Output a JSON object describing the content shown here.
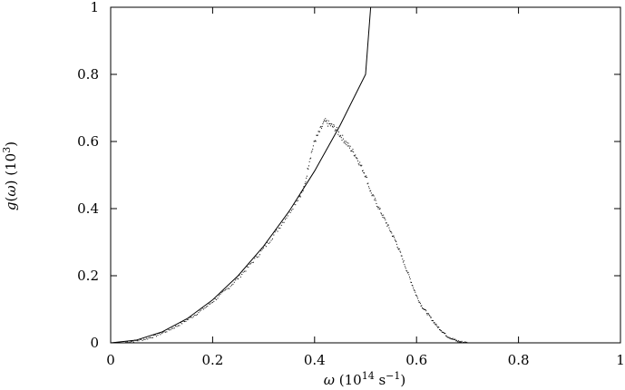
{
  "chart_data": {
    "type": "scatter",
    "title": "",
    "xlabel": {
      "symbol": "ω",
      "open": " (10",
      "exp": "14",
      "unit": " s",
      "unit_exp": "−1",
      "close": ")"
    },
    "ylabel": {
      "func": "g",
      "open": "(",
      "var": "ω",
      "close": ") (10",
      "exp": "3",
      "end": ")"
    },
    "xlim": [
      0,
      1
    ],
    "ylim": [
      0,
      1
    ],
    "xticks": [
      "0",
      "0.2",
      "0.4",
      "0.6",
      "0.8",
      "1"
    ],
    "yticks": [
      "0",
      "0.2",
      "0.4",
      "0.6",
      "0.8",
      "1"
    ],
    "grid": false,
    "legend": "none",
    "series": [
      {
        "kind": "dots",
        "description_points": [
          [
            0.03,
            0.002
          ],
          [
            0.05,
            0.006
          ],
          [
            0.07,
            0.012
          ],
          [
            0.09,
            0.022
          ],
          [
            0.11,
            0.035
          ],
          [
            0.13,
            0.05
          ],
          [
            0.15,
            0.068
          ],
          [
            0.17,
            0.088
          ],
          [
            0.19,
            0.11
          ],
          [
            0.21,
            0.135
          ],
          [
            0.23,
            0.162
          ],
          [
            0.25,
            0.193
          ],
          [
            0.27,
            0.226
          ],
          [
            0.29,
            0.262
          ],
          [
            0.31,
            0.3
          ],
          [
            0.33,
            0.342
          ],
          [
            0.35,
            0.387
          ],
          [
            0.37,
            0.436
          ],
          [
            0.38,
            0.462
          ],
          [
            0.39,
            0.545
          ],
          [
            0.4,
            0.6
          ],
          [
            0.41,
            0.63
          ],
          [
            0.42,
            0.66
          ],
          [
            0.43,
            0.65
          ],
          [
            0.44,
            0.64
          ],
          [
            0.45,
            0.62
          ],
          [
            0.46,
            0.6
          ],
          [
            0.47,
            0.58
          ],
          [
            0.48,
            0.56
          ],
          [
            0.49,
            0.53
          ],
          [
            0.5,
            0.5
          ],
          [
            0.51,
            0.45
          ],
          [
            0.52,
            0.42
          ],
          [
            0.53,
            0.39
          ],
          [
            0.54,
            0.36
          ],
          [
            0.55,
            0.33
          ],
          [
            0.56,
            0.3
          ],
          [
            0.57,
            0.26
          ],
          [
            0.58,
            0.22
          ],
          [
            0.59,
            0.18
          ],
          [
            0.6,
            0.14
          ],
          [
            0.61,
            0.11
          ],
          [
            0.62,
            0.09
          ],
          [
            0.63,
            0.07
          ],
          [
            0.64,
            0.05
          ],
          [
            0.65,
            0.035
          ],
          [
            0.66,
            0.02
          ],
          [
            0.67,
            0.012
          ],
          [
            0.68,
            0.005
          ],
          [
            0.69,
            0.002
          ],
          [
            0.7,
            0.0
          ]
        ]
      },
      {
        "kind": "line",
        "x": [
          0.0,
          0.05,
          0.1,
          0.15,
          0.2,
          0.25,
          0.3,
          0.35,
          0.4,
          0.45,
          0.5,
          0.51
        ],
        "y": [
          0.0,
          0.008,
          0.032,
          0.072,
          0.128,
          0.2,
          0.288,
          0.392,
          0.512,
          0.648,
          0.8,
          1.0
        ]
      }
    ],
    "colors": {
      "axis": "#000000",
      "line": "#000000",
      "dots": "#000000"
    }
  }
}
